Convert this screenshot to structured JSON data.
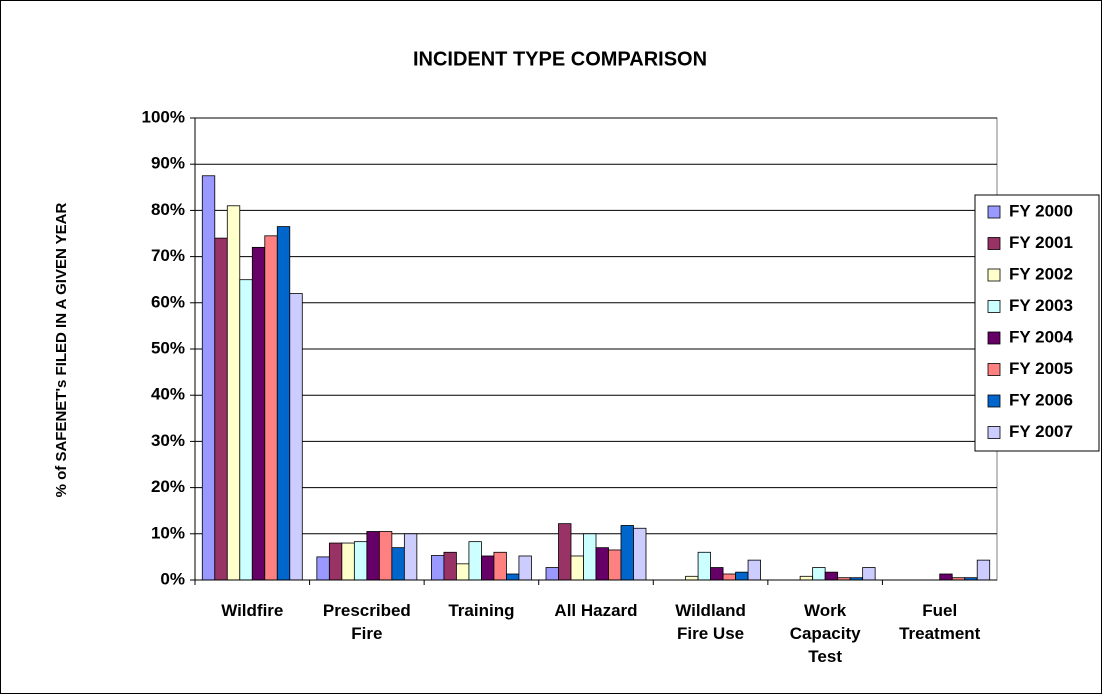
{
  "chart_data": {
    "type": "bar",
    "title": "INCIDENT TYPE COMPARISON",
    "y_label": "% of SAFENET's FILED IN A GIVEN YEAR",
    "categories": [
      "Wildfire",
      "Prescribed Fire",
      "Training",
      "All Hazard",
      "Wildland Fire Use",
      "Work Capacity Test",
      "Fuel Treatment"
    ],
    "series": [
      {
        "name": "FY 2000",
        "color": "#9999ff",
        "values": [
          87.5,
          5,
          5.3,
          2.7,
          0,
          0,
          0
        ]
      },
      {
        "name": "FY 2001",
        "color": "#993366",
        "values": [
          74,
          8,
          6,
          12.2,
          0,
          0,
          0
        ]
      },
      {
        "name": "FY 2002",
        "color": "#ffffcc",
        "values": [
          81,
          8,
          3.5,
          5.2,
          0.8,
          0.8,
          0
        ]
      },
      {
        "name": "FY 2003",
        "color": "#ccffff",
        "values": [
          65,
          8.3,
          8.3,
          10,
          6,
          2.7,
          0
        ]
      },
      {
        "name": "FY 2004",
        "color": "#660066",
        "values": [
          72,
          10.5,
          5.2,
          7,
          2.7,
          1.7,
          1.3
        ]
      },
      {
        "name": "FY 2005",
        "color": "#ff8080",
        "values": [
          74.5,
          10.5,
          6,
          6.5,
          1.3,
          0.5,
          0.5
        ]
      },
      {
        "name": "FY 2006",
        "color": "#0066cc",
        "values": [
          76.5,
          7,
          1.3,
          11.8,
          1.7,
          0.5,
          0.5
        ]
      },
      {
        "name": "FY 2007",
        "color": "#ccccff",
        "values": [
          62,
          10,
          5.2,
          11.2,
          4.3,
          2.7,
          4.3
        ]
      }
    ],
    "ylim": [
      0,
      100
    ],
    "yticks": [
      {
        "value": 0,
        "label": "0%"
      },
      {
        "value": 10,
        "label": "10%"
      },
      {
        "value": 20,
        "label": "20%"
      },
      {
        "value": 30,
        "label": "30%"
      },
      {
        "value": 40,
        "label": "40%"
      },
      {
        "value": 50,
        "label": "50%"
      },
      {
        "value": 60,
        "label": "60%"
      },
      {
        "value": 70,
        "label": "70%"
      },
      {
        "value": 80,
        "label": "80%"
      },
      {
        "value": 90,
        "label": "90%"
      },
      {
        "value": 100,
        "label": "100%"
      }
    ],
    "grid": true,
    "legend": "right"
  }
}
